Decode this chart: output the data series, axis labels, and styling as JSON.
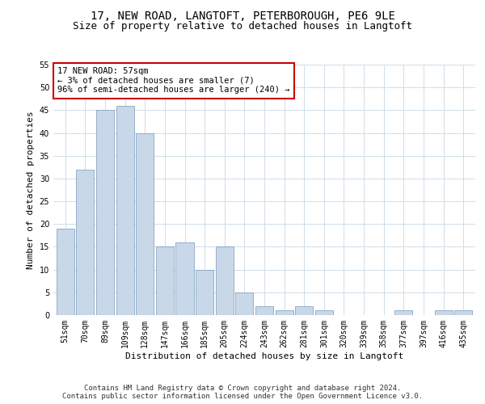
{
  "title1": "17, NEW ROAD, LANGTOFT, PETERBOROUGH, PE6 9LE",
  "title2": "Size of property relative to detached houses in Langtoft",
  "xlabel": "Distribution of detached houses by size in Langtoft",
  "ylabel": "Number of detached properties",
  "categories": [
    "51sqm",
    "70sqm",
    "89sqm",
    "109sqm",
    "128sqm",
    "147sqm",
    "166sqm",
    "185sqm",
    "205sqm",
    "224sqm",
    "243sqm",
    "262sqm",
    "281sqm",
    "301sqm",
    "320sqm",
    "339sqm",
    "358sqm",
    "377sqm",
    "397sqm",
    "416sqm",
    "435sqm"
  ],
  "values": [
    19,
    32,
    45,
    46,
    40,
    15,
    16,
    10,
    15,
    5,
    2,
    1,
    2,
    1,
    0,
    0,
    0,
    1,
    0,
    1,
    1
  ],
  "bar_color": "#c8d8e8",
  "bar_edge_color": "#7799bb",
  "annotation_text": "17 NEW ROAD: 57sqm\n← 3% of detached houses are smaller (7)\n96% of semi-detached houses are larger (240) →",
  "annotation_box_color": "#ffffff",
  "annotation_box_edge": "#cc0000",
  "ylim": [
    0,
    55
  ],
  "yticks": [
    0,
    5,
    10,
    15,
    20,
    25,
    30,
    35,
    40,
    45,
    50,
    55
  ],
  "footer1": "Contains HM Land Registry data © Crown copyright and database right 2024.",
  "footer2": "Contains public sector information licensed under the Open Government Licence v3.0.",
  "bg_color": "#ffffff",
  "grid_color": "#d0dde8",
  "title1_fontsize": 10,
  "title2_fontsize": 9,
  "axis_label_fontsize": 8,
  "tick_fontsize": 7,
  "annotation_fontsize": 7.5,
  "footer_fontsize": 6.5
}
